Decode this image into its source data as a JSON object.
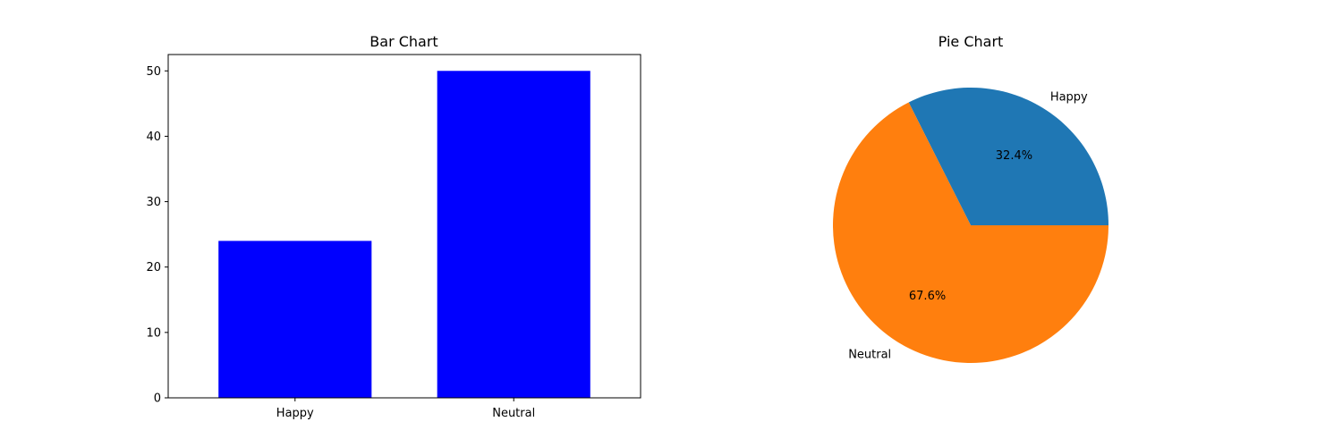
{
  "chart_data": [
    {
      "type": "bar",
      "title": "Bar Chart",
      "categories": [
        "Happy",
        "Neutral"
      ],
      "values": [
        24,
        50
      ],
      "ylim": [
        0,
        52.5
      ],
      "yticks": [
        0,
        10,
        20,
        30,
        40,
        50
      ],
      "xlabel": "",
      "ylabel": "",
      "bar_color": "#0000ff",
      "grid": false
    },
    {
      "type": "pie",
      "title": "Pie Chart",
      "labels": [
        "Happy",
        "Neutral"
      ],
      "values": [
        24,
        50
      ],
      "percent_labels": [
        "32.4%",
        "67.6%"
      ],
      "colors": [
        "#1f77b4",
        "#ff7f0e"
      ]
    }
  ]
}
